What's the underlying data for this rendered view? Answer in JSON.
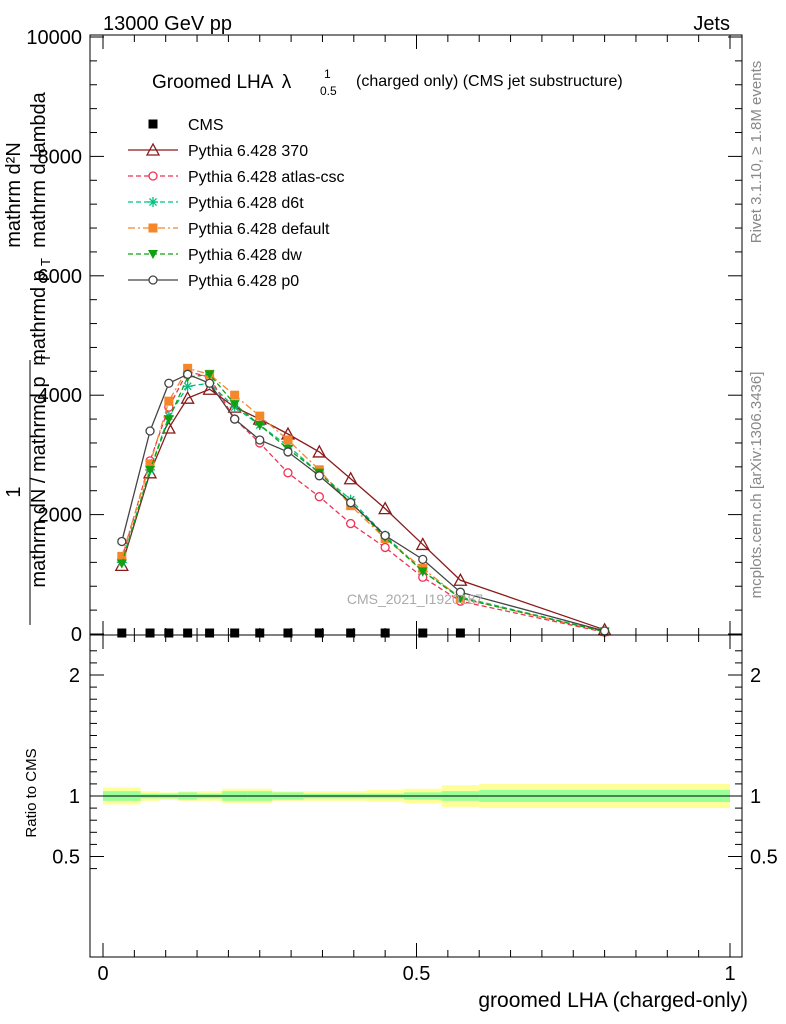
{
  "header": {
    "left": "13000 GeV pp",
    "right": "Jets"
  },
  "side_labels": {
    "rivet": "Rivet 3.1.10, ≥ 1.8M events",
    "mcplots": "mcplots.cern.ch [arXiv:1306.3436]"
  },
  "watermark": "CMS_2021_I1920187",
  "chart_data": [
    {
      "type": "line",
      "title_main": "Groomed LHA",
      "title_symbol": "λ",
      "title_sup": "1",
      "title_sub": "0.5",
      "title_rest": "(charged only) (CMS jet substructure)",
      "ylabel_num": "1",
      "ylabel_den": "mathrm dN / mathrmd p",
      "ylabel_den_sub": "T",
      "ylabel_right_num": "mathrm d²N",
      "ylabel_right_den": "mathrmd p",
      "ylabel_right_den_sub": "T",
      "ylabel_right_den_rest": "mathrm d lambda",
      "ylim": [
        0,
        10000
      ],
      "yticks": [
        0,
        2000,
        4000,
        6000,
        8000,
        10000
      ],
      "ytick_labels": [
        "0",
        "2000",
        "4000",
        "6000",
        "8000",
        "10000"
      ],
      "xlim": [
        0,
        1
      ],
      "x": [
        0.03,
        0.075,
        0.105,
        0.135,
        0.17,
        0.21,
        0.25,
        0.295,
        0.345,
        0.395,
        0.45,
        0.51,
        0.57,
        0.8
      ],
      "series": [
        {
          "name": "CMS",
          "color": "#000000",
          "style": "solid",
          "marker": "square-filled",
          "values": [
            0,
            0,
            0,
            0,
            0,
            0,
            0,
            0,
            0,
            0,
            0,
            0,
            0,
            null
          ]
        },
        {
          "name": "Pythia 6.428 370",
          "color": "#8b1a1a",
          "style": "solid",
          "marker": "triangle-open",
          "values": [
            1150,
            2700,
            3450,
            3950,
            4100,
            3800,
            3600,
            3350,
            3050,
            2600,
            2100,
            1500,
            900,
            70
          ]
        },
        {
          "name": "Pythia 6.428 atlas-csc",
          "color": "#ee3355",
          "style": "dashed",
          "marker": "circle-open",
          "values": [
            1250,
            2900,
            3800,
            4400,
            4300,
            3600,
            3200,
            2700,
            2300,
            1850,
            1450,
            950,
            550,
            30
          ]
        },
        {
          "name": "Pythia 6.428 d6t",
          "color": "#00c080",
          "style": "dashed",
          "marker": "star",
          "values": [
            1200,
            2750,
            3650,
            4150,
            4200,
            3800,
            3500,
            3150,
            2700,
            2250,
            1650,
            1050,
            620,
            40
          ]
        },
        {
          "name": "Pythia 6.428 default",
          "color": "#f5872a",
          "style": "dashdot",
          "marker": "square-filled",
          "values": [
            1300,
            2850,
            3900,
            4450,
            4350,
            4000,
            3650,
            3250,
            2750,
            2150,
            1600,
            1100,
            600,
            40
          ]
        },
        {
          "name": "Pythia 6.428 dw",
          "color": "#10a010",
          "style": "dashed",
          "marker": "triangle-down-filled",
          "values": [
            1180,
            2750,
            3600,
            4300,
            4350,
            3850,
            3500,
            3100,
            2700,
            2200,
            1620,
            1050,
            600,
            40
          ]
        },
        {
          "name": "Pythia 6.428 p0",
          "color": "#444444",
          "style": "solid",
          "marker": "circle-open",
          "values": [
            1550,
            3400,
            4200,
            4350,
            4200,
            3600,
            3250,
            3050,
            2650,
            2200,
            1650,
            1250,
            700,
            50
          ]
        }
      ]
    },
    {
      "type": "area",
      "ylabel": "Ratio to CMS",
      "xlabel": "groomed LHA (charged-only)",
      "ylim": [
        0.3,
        2.3
      ],
      "yticks": [
        0.5,
        1,
        2
      ],
      "ytick_labels": [
        "0.5",
        "1",
        "2"
      ],
      "xticks": [
        0,
        0.5,
        1
      ],
      "xtick_labels": [
        "0",
        "0.5",
        "1"
      ],
      "bin_edges": [
        0,
        0.06,
        0.09,
        0.12,
        0.15,
        0.19,
        0.23,
        0.27,
        0.32,
        0.37,
        0.42,
        0.48,
        0.54,
        0.6,
        1.0
      ],
      "band_outer": [
        [
          0.93,
          1.07
        ],
        [
          0.93,
          1.07
        ],
        [
          0.96,
          1.04
        ],
        [
          0.97,
          1.03
        ],
        [
          0.96,
          1.04
        ],
        [
          0.96,
          1.04
        ],
        [
          0.94,
          1.06
        ],
        [
          0.94,
          1.06
        ],
        [
          0.96,
          1.04
        ],
        [
          0.96,
          1.04
        ],
        [
          0.96,
          1.04
        ],
        [
          0.95,
          1.05
        ],
        [
          0.94,
          1.06
        ],
        [
          0.91,
          1.09
        ],
        [
          0.9,
          1.1
        ]
      ],
      "band_inner": [
        [
          0.96,
          1.04
        ],
        [
          0.96,
          1.04
        ],
        [
          0.98,
          1.02
        ],
        [
          0.98,
          1.02
        ],
        [
          0.97,
          1.03
        ],
        [
          0.98,
          1.02
        ],
        [
          0.96,
          1.04
        ],
        [
          0.96,
          1.04
        ],
        [
          0.97,
          1.03
        ],
        [
          0.98,
          1.02
        ],
        [
          0.98,
          1.02
        ],
        [
          0.98,
          1.02
        ],
        [
          0.97,
          1.03
        ],
        [
          0.96,
          1.04
        ],
        [
          0.95,
          1.05
        ]
      ],
      "inner_color": "#99ff99",
      "outer_color": "#ffff99",
      "reference_value": 1
    }
  ]
}
